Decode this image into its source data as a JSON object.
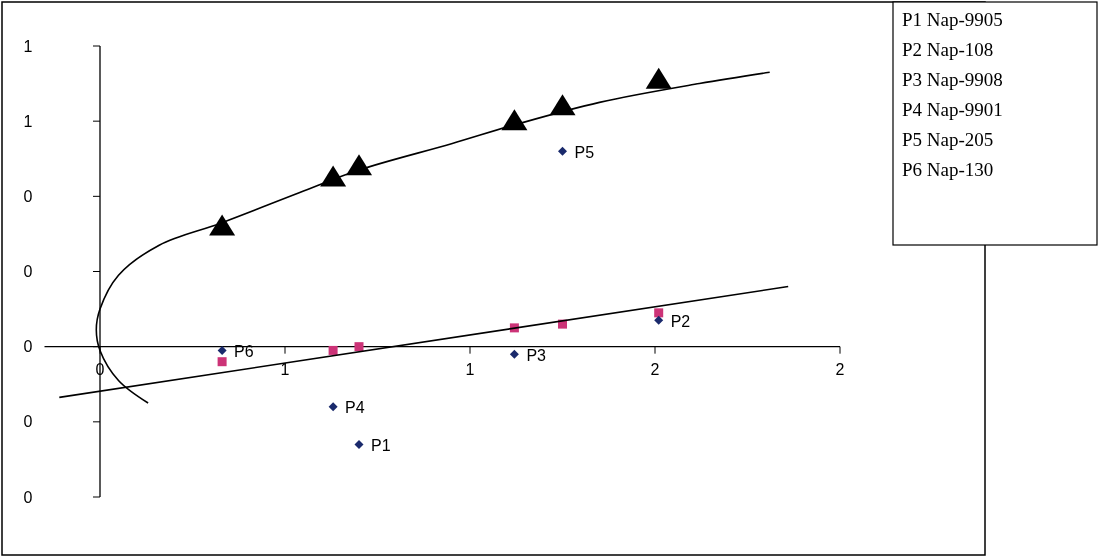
{
  "chart_data": {
    "type": "scatter",
    "xlim": [
      -0.15,
      2.0
    ],
    "ylim": [
      -0.4,
      0.8
    ],
    "xticks": [
      0,
      {
        "value": 0.5,
        "label": "1"
      },
      {
        "value": 1.0,
        "label": "1"
      },
      {
        "value": 1.5,
        "label": "2"
      },
      {
        "value": 2.0,
        "label": "2"
      }
    ],
    "yticks": [
      {
        "value": -0.4,
        "label": "0"
      },
      {
        "value": -0.2,
        "label": "0"
      },
      0,
      {
        "value": 0.2,
        "label": "0"
      },
      {
        "value": 0.4,
        "label": "0"
      },
      {
        "value": 0.6,
        "label": "1"
      },
      {
        "value": 0.8,
        "label": "1"
      }
    ],
    "series": [
      {
        "marker": "triangle",
        "color": "#000000",
        "x": [
          0.33,
          0.63,
          0.7,
          1.12,
          1.25,
          1.51
        ],
        "values": [
          0.32,
          0.45,
          0.48,
          0.6,
          0.64,
          0.71
        ]
      },
      {
        "marker": "square",
        "color": "#cc3377",
        "x": [
          0.33,
          0.63,
          0.7,
          1.12,
          1.25,
          1.51
        ],
        "values": [
          -0.04,
          -0.01,
          0.0,
          0.05,
          0.06,
          0.09
        ]
      },
      {
        "marker": "diamond",
        "color": "#1a2a6c",
        "x": [
          0.33,
          0.63,
          0.7,
          1.12,
          1.25,
          1.51
        ],
        "values": [
          -0.01,
          -0.16,
          -0.26,
          -0.02,
          0.52,
          0.07
        ]
      },
      {
        "type": "line",
        "marker": "none",
        "line_style": "solid",
        "color": "#000000",
        "x": [
          0.13,
          0.05,
          0.0,
          -0.01,
          0.0,
          0.05,
          0.16,
          0.33,
          0.54,
          0.7,
          0.95,
          1.12,
          1.35,
          1.62,
          1.81
        ],
        "values": [
          -0.15,
          -0.09,
          -0.01,
          0.045,
          0.1,
          0.19,
          0.27,
          0.33,
          0.41,
          0.47,
          0.54,
          0.59,
          0.65,
          0.7,
          0.73
        ]
      },
      {
        "type": "line",
        "marker": "none",
        "line_style": "solid",
        "color": "#000000",
        "x": [
          -0.11,
          1.86
        ],
        "values": [
          -0.135,
          0.16
        ]
      }
    ],
    "annotations": [
      "P1 Nap-9905",
      "P2 Nap-108",
      "P3 Nap-9908",
      "P4 Nap-9901",
      "P5 Nap-205",
      "P6 Nap-130",
      {
        "text": "P1",
        "x": 0.7,
        "y": -0.26
      },
      {
        "text": "P2",
        "x": 1.51,
        "y": 0.07
      },
      {
        "text": "P3",
        "x": 1.12,
        "y": -0.02
      },
      {
        "text": "P4",
        "x": 0.63,
        "y": -0.16
      },
      {
        "text": "P5",
        "x": 1.25,
        "y": 0.52
      },
      {
        "text": "P6",
        "x": 0.33,
        "y": -0.01
      }
    ]
  }
}
